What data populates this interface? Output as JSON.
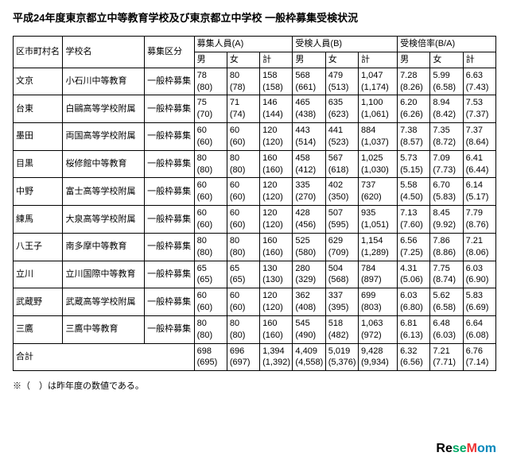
{
  "title": "平成24年度東京都立中等教育学校及び東京都立中学校 一般枠募集受検状況",
  "footnote": "※（　）は昨年度の数値である。",
  "header": {
    "ward": "区市町村名",
    "school": "学校名",
    "class": "募集区分",
    "groupA": "募集人員(A)",
    "groupB": "受検人員(B)",
    "groupC": "受検倍率(B/A)",
    "m": "男",
    "f": "女",
    "t": "計"
  },
  "rows": [
    {
      "ward": "文京",
      "school": "小石川中等教育",
      "class": "一般枠募集",
      "a": [
        "78\n(80)",
        "80\n(78)",
        "158\n(158)"
      ],
      "b": [
        "568\n(661)",
        "479\n(513)",
        "1,047\n(1,174)"
      ],
      "c": [
        "7.28\n(8.26)",
        "5.99\n(6.58)",
        "6.63\n(7.43)"
      ]
    },
    {
      "ward": "台東",
      "school": "白鷗高等学校附属",
      "class": "一般枠募集",
      "a": [
        "75\n(70)",
        "71\n(74)",
        "146\n(144)"
      ],
      "b": [
        "465\n(438)",
        "635\n(623)",
        "1,100\n(1,061)"
      ],
      "c": [
        "6.20\n(6.26)",
        "8.94\n(8.42)",
        "7.53\n(7.37)"
      ]
    },
    {
      "ward": "墨田",
      "school": "両国高等学校附属",
      "class": "一般枠募集",
      "a": [
        "60\n(60)",
        "60\n(60)",
        "120\n(120)"
      ],
      "b": [
        "443\n(514)",
        "441\n(523)",
        "884\n(1,037)"
      ],
      "c": [
        "7.38\n(8.57)",
        "7.35\n(8.72)",
        "7.37\n(8.64)"
      ]
    },
    {
      "ward": "目黒",
      "school": "桜修館中等教育",
      "class": "一般枠募集",
      "a": [
        "80\n(80)",
        "80\n(80)",
        "160\n(160)"
      ],
      "b": [
        "458\n(412)",
        "567\n(618)",
        "1,025\n(1,030)"
      ],
      "c": [
        "5.73\n(5.15)",
        "7.09\n(7.73)",
        "6.41\n(6.44)"
      ]
    },
    {
      "ward": "中野",
      "school": "富士高等学校附属",
      "class": "一般枠募集",
      "a": [
        "60\n(60)",
        "60\n(60)",
        "120\n(120)"
      ],
      "b": [
        "335\n(270)",
        "402\n(350)",
        "737\n(620)"
      ],
      "c": [
        "5.58\n(4.50)",
        "6.70\n(5.83)",
        "6.14\n(5.17)"
      ]
    },
    {
      "ward": "練馬",
      "school": "大泉高等学校附属",
      "class": "一般枠募集",
      "a": [
        "60\n(60)",
        "60\n(60)",
        "120\n(120)"
      ],
      "b": [
        "428\n(456)",
        "507\n(595)",
        "935\n(1,051)"
      ],
      "c": [
        "7.13\n(7.60)",
        "8.45\n(9.92)",
        "7.79\n(8.76)"
      ]
    },
    {
      "ward": "八王子",
      "school": "南多摩中等教育",
      "class": "一般枠募集",
      "a": [
        "80\n(80)",
        "80\n(80)",
        "160\n(160)"
      ],
      "b": [
        "525\n(580)",
        "629\n(709)",
        "1,154\n(1,289)"
      ],
      "c": [
        "6.56\n(7.25)",
        "7.86\n(8.86)",
        "7.21\n(8.06)"
      ]
    },
    {
      "ward": "立川",
      "school": "立川国際中等教育",
      "class": "一般枠募集",
      "a": [
        "65\n(65)",
        "65\n(65)",
        "130\n(130)"
      ],
      "b": [
        "280\n(329)",
        "504\n(568)",
        "784\n(897)"
      ],
      "c": [
        "4.31\n(5.06)",
        "7.75\n(8.74)",
        "6.03\n(6.90)"
      ]
    },
    {
      "ward": "武蔵野",
      "school": "武蔵高等学校附属",
      "class": "一般枠募集",
      "a": [
        "60\n(60)",
        "60\n(60)",
        "120\n(120)"
      ],
      "b": [
        "362\n(408)",
        "337\n(395)",
        "699\n(803)"
      ],
      "c": [
        "6.03\n(6.80)",
        "5.62\n(6.58)",
        "5.83\n(6.69)"
      ]
    },
    {
      "ward": "三鷹",
      "school": "三鷹中等教育",
      "class": "一般枠募集",
      "a": [
        "80\n(80)",
        "80\n(80)",
        "160\n(160)"
      ],
      "b": [
        "545\n(490)",
        "518\n(482)",
        "1,063\n(972)"
      ],
      "c": [
        "6.81\n(6.13)",
        "6.48\n(6.03)",
        "6.64\n(6.08)"
      ]
    }
  ],
  "total": {
    "label": "合計",
    "a": [
      "698\n(695)",
      "696\n(697)",
      "1,394\n(1,392)"
    ],
    "b": [
      "4,409\n(4,558)",
      "5,019\n(5,376)",
      "9,428\n(9,934)"
    ],
    "c": [
      "6.32\n(6.56)",
      "7.21\n(7.71)",
      "6.76\n(7.14)"
    ]
  },
  "logo": {
    "re": "Re",
    "se": "se",
    "m": "M",
    "om": "om"
  }
}
